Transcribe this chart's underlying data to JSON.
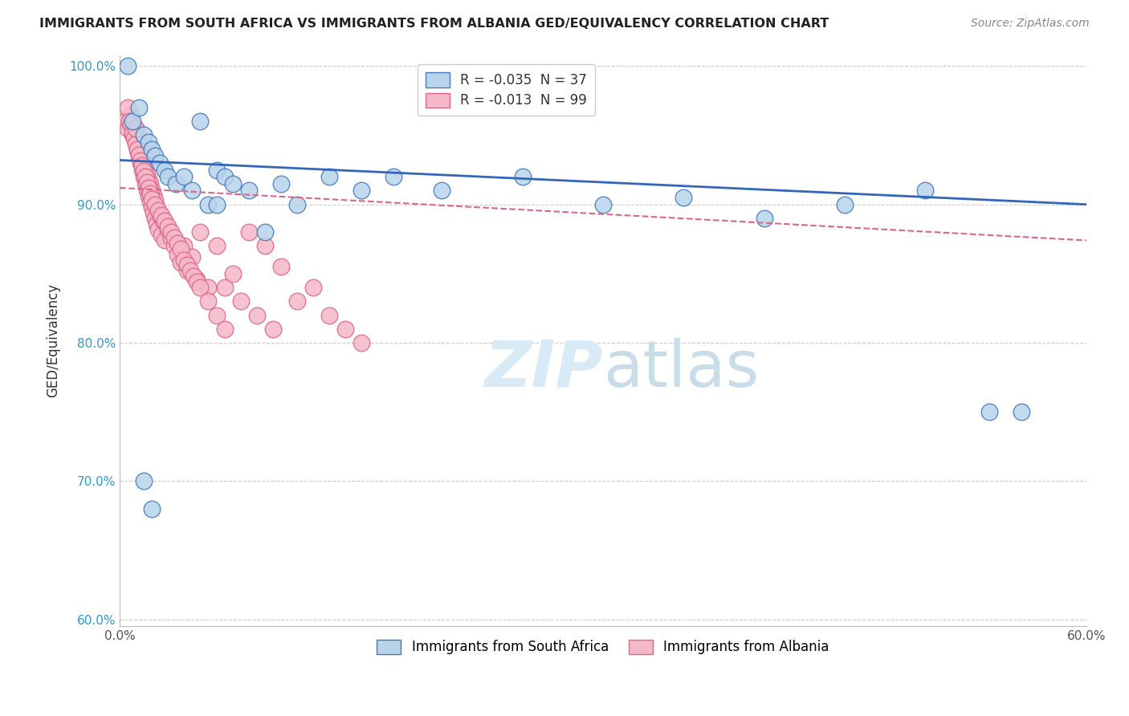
{
  "title": "IMMIGRANTS FROM SOUTH AFRICA VS IMMIGRANTS FROM ALBANIA GED/EQUIVALENCY CORRELATION CHART",
  "source": "Source: ZipAtlas.com",
  "ylabel": "GED/Equivalency",
  "xlim": [
    0.0,
    0.6
  ],
  "ylim": [
    0.595,
    1.008
  ],
  "xticks": [
    0.0,
    0.1,
    0.2,
    0.3,
    0.4,
    0.5,
    0.6
  ],
  "xticklabels": [
    "0.0%",
    "",
    "",
    "",
    "",
    "",
    "60.0%"
  ],
  "yticks": [
    0.6,
    0.7,
    0.8,
    0.9,
    1.0
  ],
  "yticklabels": [
    "60.0%",
    "70.0%",
    "80.0%",
    "90.0%",
    "100.0%"
  ],
  "legend_label1": "Immigrants from South Africa",
  "legend_label2": "Immigrants from Albania",
  "R1": -0.035,
  "N1": 37,
  "R2": -0.013,
  "N2": 99,
  "color_blue_fill": "#b8d4ea",
  "color_blue_edge": "#4477bb",
  "color_pink_fill": "#f5b8c8",
  "color_pink_edge": "#dd6688",
  "color_blue_line": "#3366bb",
  "color_pink_line": "#dd6688",
  "watermark_color": "#d8eaf5",
  "sa_line_x0": 0.0,
  "sa_line_y0": 0.932,
  "sa_line_x1": 0.6,
  "sa_line_y1": 0.9,
  "alb_line_x0": 0.0,
  "alb_line_y0": 0.912,
  "alb_line_x1": 0.6,
  "alb_line_y1": 0.874,
  "south_africa_x": [
    0.005,
    0.008,
    0.012,
    0.015,
    0.018,
    0.02,
    0.022,
    0.025,
    0.028,
    0.03,
    0.035,
    0.04,
    0.045,
    0.05,
    0.055,
    0.06,
    0.065,
    0.07,
    0.08,
    0.09,
    0.1,
    0.11,
    0.13,
    0.15,
    0.17,
    0.2,
    0.25,
    0.3,
    0.35,
    0.4,
    0.45,
    0.5,
    0.54,
    0.56,
    0.06,
    0.015,
    0.02
  ],
  "south_africa_y": [
    1.0,
    0.96,
    0.97,
    0.95,
    0.945,
    0.94,
    0.935,
    0.93,
    0.925,
    0.92,
    0.915,
    0.92,
    0.91,
    0.96,
    0.9,
    0.925,
    0.92,
    0.915,
    0.91,
    0.88,
    0.915,
    0.9,
    0.92,
    0.91,
    0.92,
    0.91,
    0.92,
    0.9,
    0.905,
    0.89,
    0.9,
    0.91,
    0.75,
    0.75,
    0.9,
    0.7,
    0.68
  ],
  "albania_x": [
    0.003,
    0.005,
    0.006,
    0.007,
    0.008,
    0.009,
    0.01,
    0.01,
    0.011,
    0.011,
    0.012,
    0.012,
    0.013,
    0.013,
    0.014,
    0.014,
    0.015,
    0.015,
    0.016,
    0.016,
    0.017,
    0.017,
    0.018,
    0.018,
    0.019,
    0.019,
    0.02,
    0.02,
    0.021,
    0.021,
    0.022,
    0.022,
    0.023,
    0.023,
    0.024,
    0.025,
    0.026,
    0.027,
    0.028,
    0.03,
    0.032,
    0.034,
    0.036,
    0.038,
    0.04,
    0.042,
    0.045,
    0.048,
    0.05,
    0.055,
    0.06,
    0.065,
    0.07,
    0.075,
    0.08,
    0.085,
    0.09,
    0.095,
    0.1,
    0.11,
    0.12,
    0.13,
    0.14,
    0.15,
    0.005,
    0.006,
    0.007,
    0.008,
    0.009,
    0.01,
    0.01,
    0.011,
    0.012,
    0.013,
    0.014,
    0.015,
    0.016,
    0.017,
    0.018,
    0.019,
    0.02,
    0.022,
    0.024,
    0.026,
    0.028,
    0.03,
    0.032,
    0.034,
    0.036,
    0.038,
    0.04,
    0.042,
    0.044,
    0.046,
    0.048,
    0.05,
    0.055,
    0.06,
    0.065
  ],
  "albania_y": [
    0.96,
    0.955,
    0.96,
    0.965,
    0.95,
    0.955,
    0.945,
    0.955,
    0.94,
    0.95,
    0.935,
    0.945,
    0.93,
    0.94,
    0.925,
    0.935,
    0.92,
    0.93,
    0.915,
    0.928,
    0.91,
    0.922,
    0.906,
    0.918,
    0.902,
    0.915,
    0.898,
    0.91,
    0.894,
    0.907,
    0.89,
    0.903,
    0.886,
    0.898,
    0.882,
    0.892,
    0.878,
    0.888,
    0.874,
    0.882,
    0.876,
    0.87,
    0.864,
    0.858,
    0.87,
    0.852,
    0.862,
    0.846,
    0.88,
    0.84,
    0.87,
    0.84,
    0.85,
    0.83,
    0.88,
    0.82,
    0.87,
    0.81,
    0.855,
    0.83,
    0.84,
    0.82,
    0.81,
    0.8,
    0.97,
    0.96,
    0.958,
    0.952,
    0.948,
    0.944,
    0.955,
    0.94,
    0.936,
    0.932,
    0.928,
    0.924,
    0.92,
    0.916,
    0.912,
    0.908,
    0.904,
    0.9,
    0.896,
    0.892,
    0.888,
    0.884,
    0.88,
    0.876,
    0.872,
    0.868,
    0.86,
    0.856,
    0.852,
    0.848,
    0.844,
    0.84,
    0.83,
    0.82,
    0.81
  ]
}
